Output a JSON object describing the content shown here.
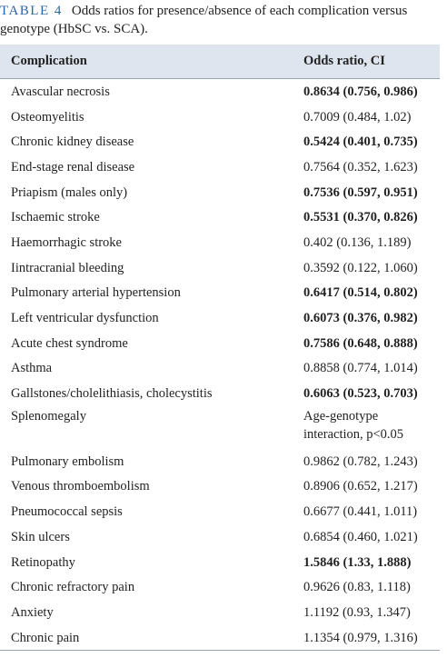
{
  "caption": {
    "label": "TABLE 4",
    "text": "Odds ratios for presence/absence of each complication versus genotype (HbSC vs. SCA)."
  },
  "table": {
    "header": [
      "Complication",
      "Odds ratio, CI"
    ],
    "rows": [
      {
        "complication": "Avascular necrosis",
        "odds_ratio": "0.8634 (0.756, 0.986)",
        "bold": true
      },
      {
        "complication": "Osteomyelitis",
        "odds_ratio": "0.7009 (0.484, 1.02)",
        "bold": false
      },
      {
        "complication": "Chronic kidney disease",
        "odds_ratio": "0.5424 (0.401, 0.735)",
        "bold": true
      },
      {
        "complication": "End-stage renal disease",
        "odds_ratio": "0.7564 (0.352, 1.623)",
        "bold": false
      },
      {
        "complication": "Priapism (males only)",
        "odds_ratio": "0.7536 (0.597, 0.951)",
        "bold": true
      },
      {
        "complication": "Ischaemic stroke",
        "odds_ratio": "0.5531 (0.370, 0.826)",
        "bold": true
      },
      {
        "complication": "Haemorrhagic stroke",
        "odds_ratio": "0.402 (0.136, 1.189)",
        "bold": false
      },
      {
        "complication": "Iintracranial bleeding",
        "odds_ratio": "0.3592 (0.122, 1.060)",
        "bold": false
      },
      {
        "complication": "Pulmonary arterial hypertension",
        "odds_ratio": "0.6417 (0.514, 0.802)",
        "bold": true
      },
      {
        "complication": "Left ventricular dysfunction",
        "odds_ratio": "0.6073 (0.376, 0.982)",
        "bold": true
      },
      {
        "complication": "Acute chest syndrome",
        "odds_ratio": "0.7586 (0.648, 0.888)",
        "bold": true
      },
      {
        "complication": "Asthma",
        "odds_ratio": "0.8858 (0.774, 1.014)",
        "bold": false
      },
      {
        "complication": "Gallstones/cholelithiasis, cholecystitis",
        "odds_ratio": "0.6063 (0.523, 0.703)",
        "bold": true
      },
      {
        "complication": "Splenomegaly",
        "odds_ratio": "Age-genotype interaction, p<0.05",
        "bold": false
      },
      {
        "complication": "Pulmonary embolism",
        "odds_ratio": "0.9862 (0.782, 1.243)",
        "bold": false
      },
      {
        "complication": "Venous thromboembolism",
        "odds_ratio": "0.8906 (0.652, 1.217)",
        "bold": false
      },
      {
        "complication": "Pneumococcal sepsis",
        "odds_ratio": "0.6677 (0.441, 1.011)",
        "bold": false
      },
      {
        "complication": "Skin ulcers",
        "odds_ratio": "0.6854 (0.460, 1.021)",
        "bold": false
      },
      {
        "complication": "Retinopathy",
        "odds_ratio": "1.5846 (1.33, 1.888)",
        "bold": true
      },
      {
        "complication": "Chronic refractory pain",
        "odds_ratio": "0.9626 (0.83, 1.118)",
        "bold": false
      },
      {
        "complication": "Anxiety",
        "odds_ratio": "1.1192 (0.93, 1.347)",
        "bold": false
      },
      {
        "complication": "Chronic pain",
        "odds_ratio": "1.1354 (0.979, 1.316)",
        "bold": false
      }
    ]
  }
}
